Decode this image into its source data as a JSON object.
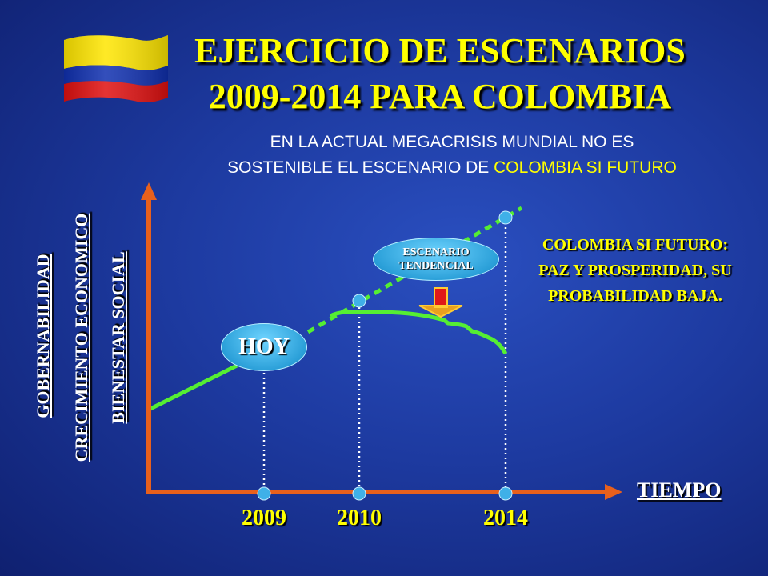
{
  "title": {
    "line1": "EJERCICIO DE ESCENARIOS",
    "line2": "2009-2014 PARA  COLOMBIA"
  },
  "subtitle": {
    "line1": "EN LA ACTUAL MEGACRISIS MUNDIAL NO ES",
    "line2_prefix": "SOSTENIBLE EL ESCENARIO DE ",
    "line2_highlight": "COLOMBIA SI FUTURO"
  },
  "y_axis_labels": [
    "GOBERNABILIDAD",
    "CRECIMIENTO ECONOMICO",
    "BIENESTAR SOCIAL"
  ],
  "x_axis_label": "TIEMPO",
  "years": [
    "2009",
    "2010",
    "2014"
  ],
  "hoy_label": "HOY",
  "escenario_tendencial": [
    "ESCENARIO",
    "TENDENCIAL"
  ],
  "scenario_text": [
    "COLOMBIA SI FUTURO:",
    "PAZ Y PROSPERIDAD, SU",
    "PROBABILIDAD BAJA."
  ],
  "flag_colors": [
    "#ffe600",
    "#1030b0",
    "#e01010"
  ],
  "colors": {
    "axis": "#e8601c",
    "line": "#55ee33",
    "guide": "#ffffff",
    "highlight": "#ffff00"
  },
  "icons": [
    "flag-icon",
    "down-arrow-icon"
  ]
}
